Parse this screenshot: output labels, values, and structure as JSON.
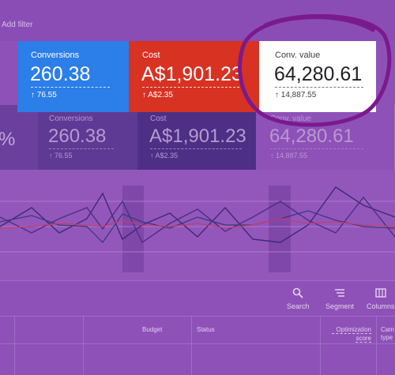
{
  "filter_bar": {
    "add_filter_label": "Add filter"
  },
  "scorecards": [
    {
      "title": "Conversions",
      "value": "260.38",
      "delta": "76.55"
    },
    {
      "title": "Cost",
      "value": "A$1,901.23",
      "delta": "A$2.35"
    },
    {
      "title": "Conv. value",
      "value": "64,280.61",
      "delta": "14,887.55"
    }
  ],
  "background_scorecards": {
    "partial_value": "%",
    "items": [
      {
        "title": "Conversions",
        "value": "260.38",
        "delta": "76.55"
      },
      {
        "title": "Cost",
        "value": "A$1,901.23",
        "delta": "A$2.35"
      },
      {
        "title": "Conv. value",
        "value": "64,280.61",
        "delta": "14,887.55"
      }
    ]
  },
  "toolbar": {
    "search_label": "Search",
    "segment_label": "Segment",
    "columns_label": "Columns"
  },
  "table": {
    "headers": {
      "budget": "Budget",
      "status": "Status",
      "optimization_score_line1": "Optimization",
      "optimization_score_line2": "score",
      "campaign_type_line1": "Cam",
      "campaign_type_line2": "type"
    }
  },
  "colors": {
    "overlay": "#8e51b8",
    "conversions_card": "#2c7ee9",
    "cost_card": "#d83223",
    "conv_value_card": "#ffffff",
    "annotation_circle": "#7a1a8c"
  },
  "icons": {
    "delta_arrow": "arrow-up-icon",
    "search": "search-icon",
    "segment": "segment-icon",
    "columns": "columns-icon"
  }
}
